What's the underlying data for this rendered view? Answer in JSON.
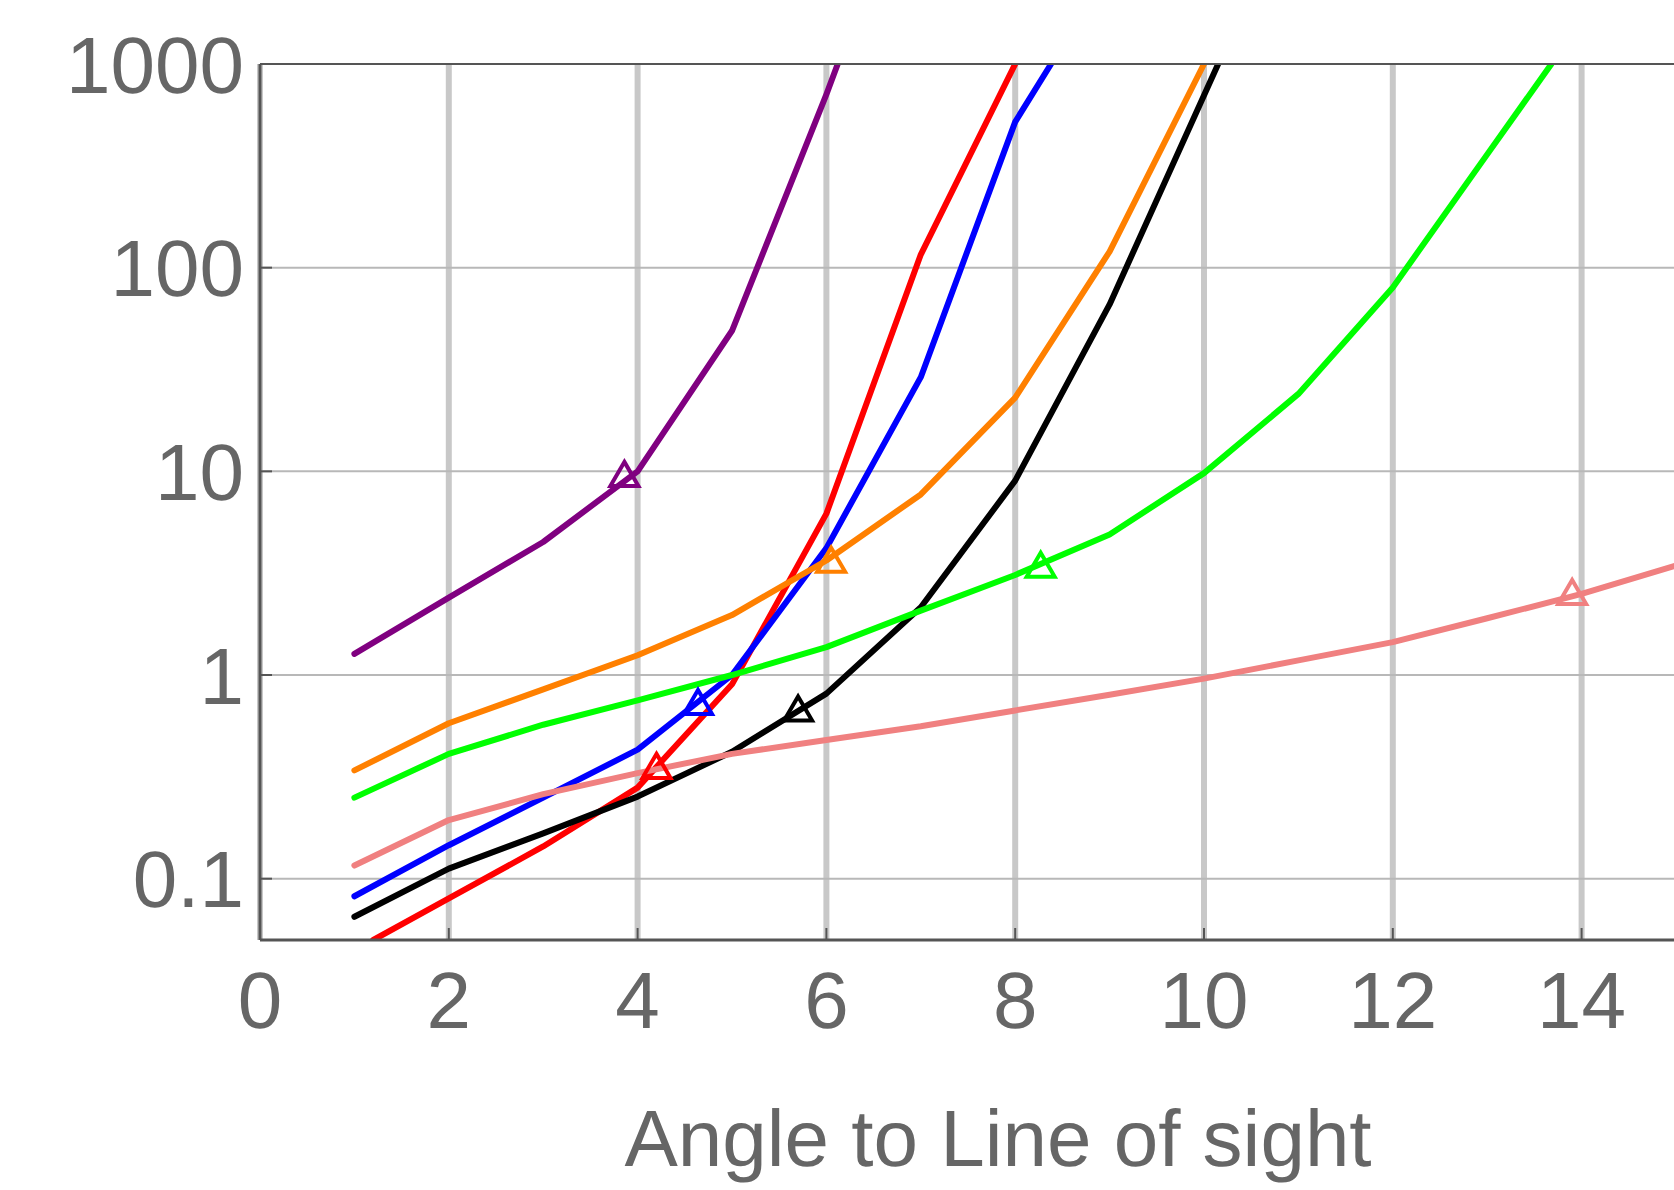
{
  "chart_data": {
    "type": "line",
    "xlabel": "Angle to Line of sight",
    "xlim": [
      0,
      15
    ],
    "ylim": [
      0.05,
      1000
    ],
    "log": "y",
    "grid": true,
    "marker": "none",
    "line_style": "solid",
    "xticks": [
      0,
      2,
      4,
      6,
      8,
      10,
      12,
      14
    ],
    "yticks": [
      0.1,
      1,
      10,
      100,
      1000
    ],
    "series": [
      {
        "color": "#800080",
        "x": [
          1,
          2,
          3,
          4,
          5,
          6,
          6.12
        ],
        "values": [
          1.27,
          2.4,
          4.5,
          10,
          49,
          710,
          1000
        ]
      },
      {
        "color": "#ff0000",
        "x": [
          1.2,
          2,
          3,
          4,
          5,
          6,
          7,
          8
        ],
        "values": [
          0.05,
          0.08,
          0.144,
          0.28,
          0.9,
          6.2,
          116,
          1000
        ]
      },
      {
        "color": "#0000ff",
        "x": [
          1,
          2,
          3,
          4,
          5,
          6,
          7,
          8,
          8.38
        ],
        "values": [
          0.082,
          0.146,
          0.25,
          0.43,
          1.0,
          4.2,
          29,
          520,
          1000
        ]
      },
      {
        "color": "#000000",
        "x": [
          1,
          2,
          3,
          4,
          5,
          6,
          7,
          8,
          9,
          10.15
        ],
        "values": [
          0.065,
          0.112,
          0.167,
          0.253,
          0.42,
          0.81,
          2.15,
          9,
          66,
          1000
        ]
      },
      {
        "color": "#ff8000",
        "x": [
          1,
          2,
          3,
          4,
          5,
          6,
          7,
          8,
          9,
          10
        ],
        "values": [
          0.34,
          0.58,
          0.85,
          1.25,
          1.97,
          3.65,
          7.7,
          23,
          120,
          1000
        ]
      },
      {
        "color": "#00ff00",
        "x": [
          1,
          2,
          3,
          4,
          5,
          6,
          7,
          8,
          9,
          10,
          11,
          12,
          13,
          13.68
        ],
        "values": [
          0.25,
          0.41,
          0.57,
          0.75,
          1.0,
          1.37,
          2.07,
          3.1,
          4.9,
          9.8,
          24,
          80,
          360,
          1000
        ]
      },
      {
        "color": "#f08080",
        "x": [
          1,
          2,
          3,
          4,
          5,
          6,
          7,
          8,
          9,
          10,
          11,
          12,
          13,
          14,
          15
        ],
        "values": [
          0.116,
          0.194,
          0.26,
          0.33,
          0.41,
          0.48,
          0.56,
          0.67,
          0.8,
          0.96,
          1.18,
          1.45,
          1.9,
          2.5,
          3.45
        ]
      },
      {
        "type": "scatter",
        "marker": "triangle",
        "colors": [
          "#800080",
          "#ff0000",
          "#0000ff",
          "#000000",
          "#ff8000",
          "#00ff00",
          "#f08080"
        ],
        "x": [
          3.86,
          4.2,
          4.64,
          5.7,
          6.05,
          8.27,
          13.9
        ],
        "values": [
          9.5,
          0.35,
          0.72,
          0.67,
          3.6,
          3.4,
          2.5
        ]
      }
    ]
  }
}
